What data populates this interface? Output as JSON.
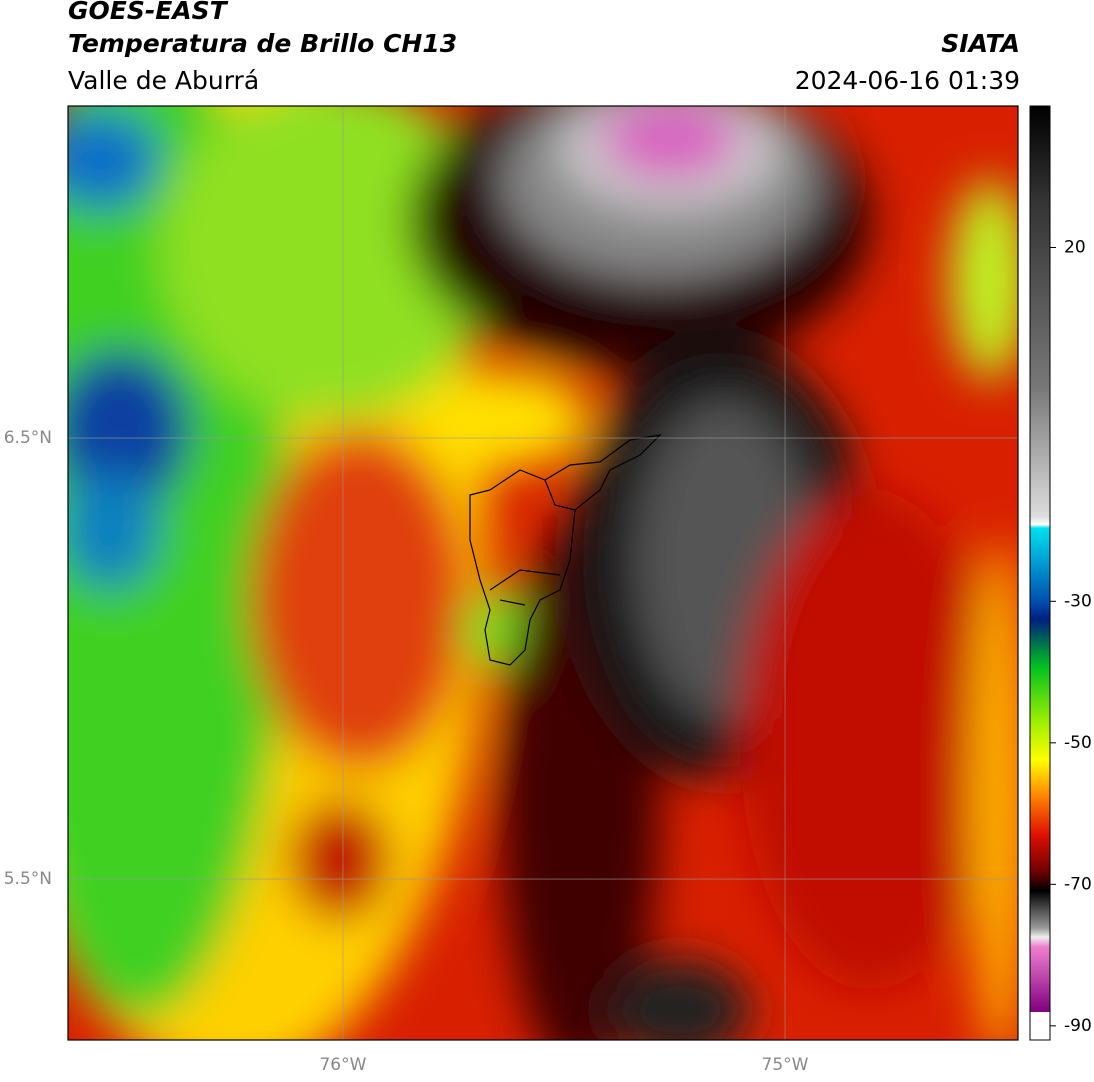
{
  "header": {
    "title": "GOES-EAST",
    "subtitle": "Temperatura de Brillo CH13",
    "region": "Valle de Aburrá",
    "source": "SIATA",
    "timestamp": "2024-06-16 01:39"
  },
  "map": {
    "lon_range": [
      -76.622,
      -74.473
    ],
    "lat_range": [
      5.135,
      7.253
    ],
    "lon_ticks": [
      {
        "value": -76,
        "label": "76°W"
      },
      {
        "value": -75,
        "label": "75°W"
      }
    ],
    "lat_ticks": [
      {
        "value": 6.5,
        "label": "6.5°N"
      },
      {
        "value": 5.5,
        "label": "5.5°N"
      }
    ]
  },
  "colorbar": {
    "range": [
      -92,
      40
    ],
    "ticks": [
      20,
      -30,
      -50,
      -70,
      -90
    ]
  }
}
